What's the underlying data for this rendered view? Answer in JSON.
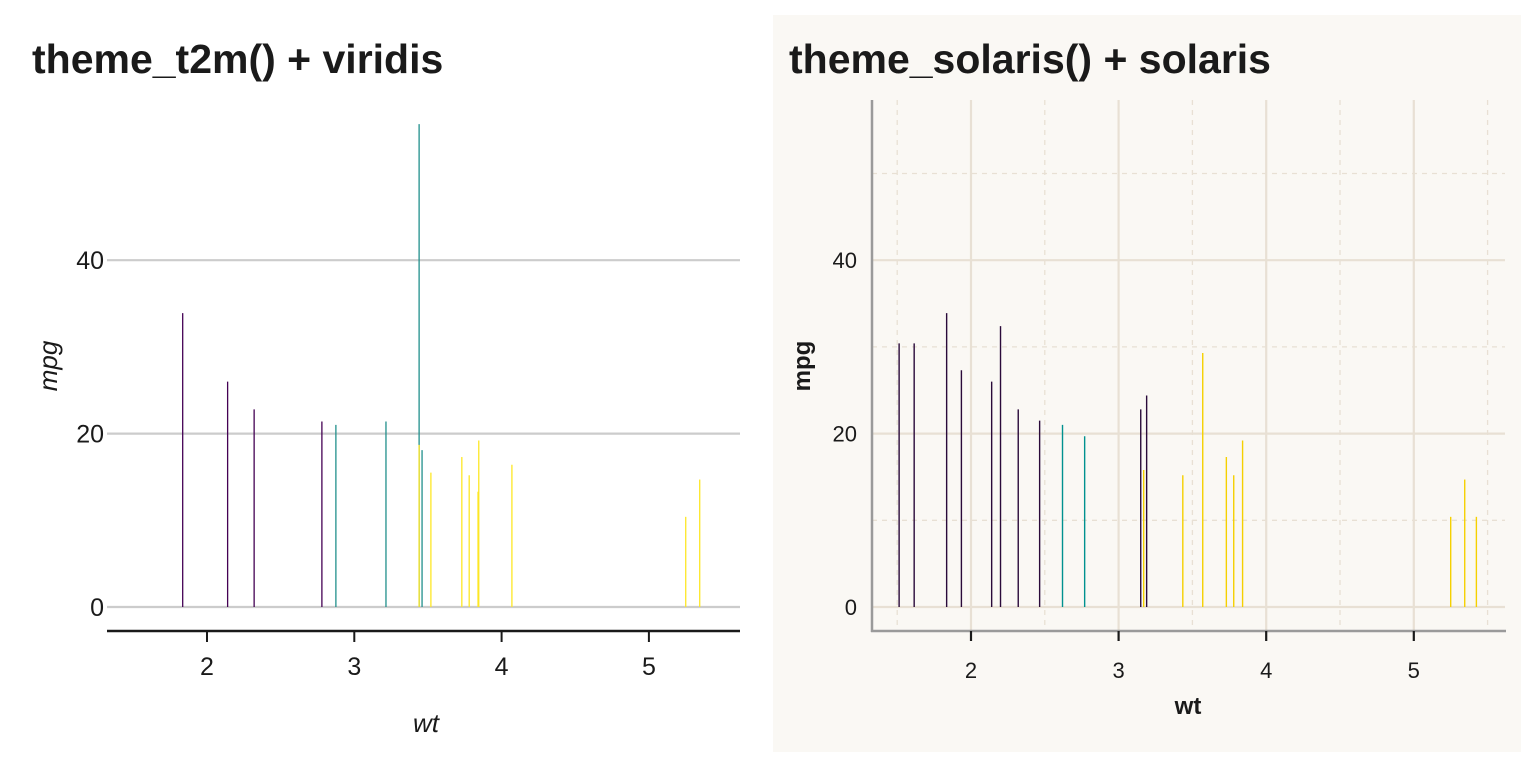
{
  "chart_data": [
    {
      "type": "bar",
      "panel": "left",
      "title": "theme_t2m() + viridis",
      "xlabel": "wt",
      "ylabel": "mpg",
      "xlim": [
        1.32,
        5.62
      ],
      "ylim": [
        -2.8,
        56
      ],
      "x_ticks": [
        2,
        3,
        4,
        5
      ],
      "y_ticks": [
        0,
        20,
        40
      ],
      "grid": {
        "major_y": true,
        "major_x": false,
        "minor": false
      },
      "legend": "none",
      "colors": {
        "purple": "#440154",
        "teal": "#21908c",
        "yellow": "#fde725"
      },
      "bars": [
        {
          "x": 1.835,
          "y": 33.9,
          "color": "purple"
        },
        {
          "x": 2.14,
          "y": 26.0,
          "color": "purple"
        },
        {
          "x": 2.32,
          "y": 22.8,
          "color": "purple"
        },
        {
          "x": 2.78,
          "y": 21.4,
          "color": "purple"
        },
        {
          "x": 2.875,
          "y": 21.0,
          "color": "teal"
        },
        {
          "x": 3.215,
          "y": 21.4,
          "color": "teal"
        },
        {
          "x": 3.44,
          "y": 55.7,
          "color": "teal"
        },
        {
          "x": 3.44,
          "y": 18.7,
          "color": "yellow"
        },
        {
          "x": 3.46,
          "y": 18.1,
          "color": "teal"
        },
        {
          "x": 3.52,
          "y": 15.5,
          "color": "yellow"
        },
        {
          "x": 3.73,
          "y": 17.3,
          "color": "yellow"
        },
        {
          "x": 3.78,
          "y": 15.2,
          "color": "yellow"
        },
        {
          "x": 3.84,
          "y": 13.3,
          "color": "yellow"
        },
        {
          "x": 3.845,
          "y": 19.2,
          "color": "yellow"
        },
        {
          "x": 4.07,
          "y": 16.4,
          "color": "yellow"
        },
        {
          "x": 5.25,
          "y": 10.4,
          "color": "yellow"
        },
        {
          "x": 5.345,
          "y": 14.7,
          "color": "yellow"
        }
      ]
    },
    {
      "type": "bar",
      "panel": "right",
      "title": "theme_solaris() + solaris",
      "xlabel": "wt",
      "ylabel": "mpg",
      "xlim": [
        1.32,
        5.62
      ],
      "ylim": [
        -2.8,
        58.5
      ],
      "x_ticks": [
        2,
        3,
        4,
        5
      ],
      "y_ticks": [
        0,
        20,
        40
      ],
      "x_minor": [
        1.5,
        2.5,
        3.5,
        4.5,
        5.5
      ],
      "y_minor": [
        10,
        30,
        50
      ],
      "grid": {
        "major_y": true,
        "major_x": true,
        "minor": true
      },
      "legend": "none",
      "background": "#faf8f4",
      "colors": {
        "purple": "#2a0a3a",
        "teal": "#00918f",
        "yellow": "#f5d000"
      },
      "bars": [
        {
          "x": 1.513,
          "y": 30.4,
          "color": "purple"
        },
        {
          "x": 1.615,
          "y": 30.4,
          "color": "purple"
        },
        {
          "x": 1.835,
          "y": 33.9,
          "color": "purple"
        },
        {
          "x": 1.935,
          "y": 27.3,
          "color": "purple"
        },
        {
          "x": 2.14,
          "y": 26.0,
          "color": "purple"
        },
        {
          "x": 2.2,
          "y": 32.4,
          "color": "purple"
        },
        {
          "x": 2.32,
          "y": 22.8,
          "color": "purple"
        },
        {
          "x": 2.465,
          "y": 21.5,
          "color": "purple"
        },
        {
          "x": 2.62,
          "y": 21.0,
          "color": "teal"
        },
        {
          "x": 2.77,
          "y": 19.7,
          "color": "teal"
        },
        {
          "x": 3.15,
          "y": 22.8,
          "color": "purple"
        },
        {
          "x": 3.17,
          "y": 15.8,
          "color": "yellow"
        },
        {
          "x": 3.19,
          "y": 24.4,
          "color": "purple"
        },
        {
          "x": 3.435,
          "y": 15.2,
          "color": "yellow"
        },
        {
          "x": 3.57,
          "y": 29.3,
          "color": "yellow"
        },
        {
          "x": 3.73,
          "y": 17.3,
          "color": "yellow"
        },
        {
          "x": 3.78,
          "y": 15.2,
          "color": "yellow"
        },
        {
          "x": 3.84,
          "y": 19.2,
          "color": "yellow"
        },
        {
          "x": 5.25,
          "y": 10.4,
          "color": "yellow"
        },
        {
          "x": 5.345,
          "y": 14.7,
          "color": "yellow"
        },
        {
          "x": 5.424,
          "y": 10.4,
          "color": "yellow"
        }
      ]
    }
  ]
}
